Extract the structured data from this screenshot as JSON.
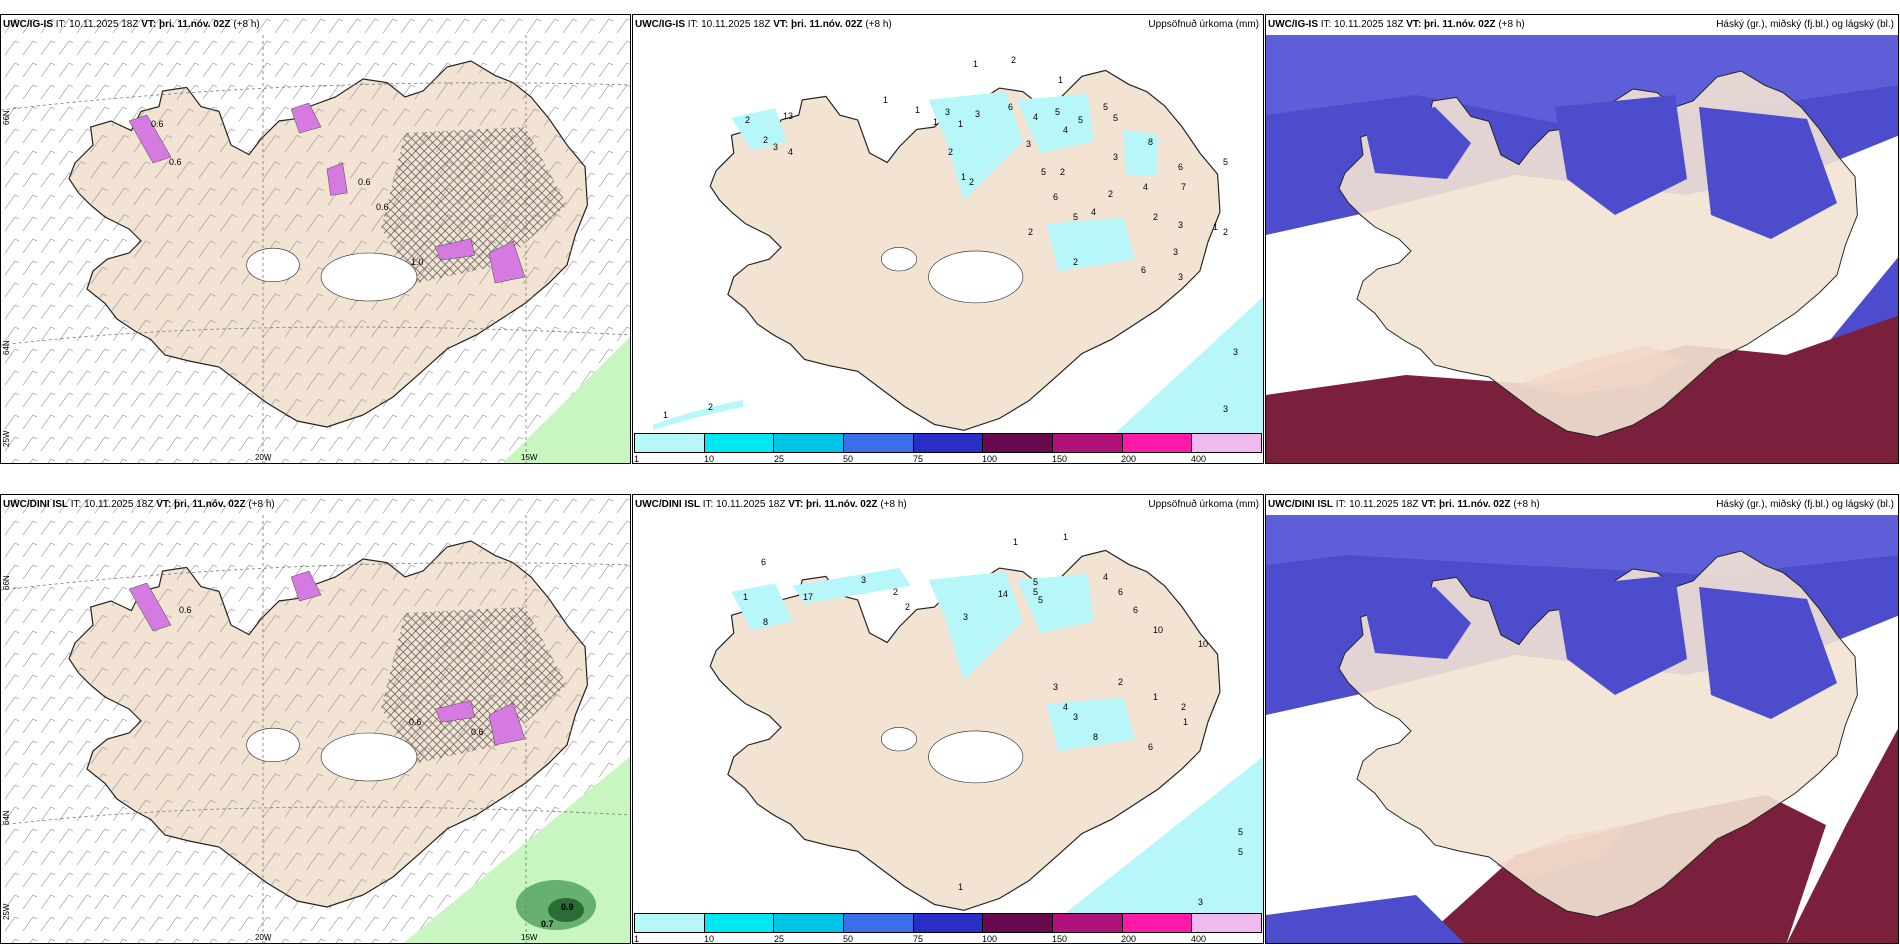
{
  "panels": [
    {
      "model": "UWC/IG-IS",
      "it_label": "IT:",
      "it": "10.11.2025 18Z",
      "vt_label": "VT:",
      "vt": "þri. 11.nóv. 02Z",
      "lead": "(+8 h)",
      "right": ""
    },
    {
      "model": "UWC/IG-IS",
      "it_label": "IT:",
      "it": "10.11.2025 18Z",
      "vt_label": "VT:",
      "vt": "þri. 11.nóv. 02Z",
      "lead": "(+8 h)",
      "right": "Uppsöfnuð úrkoma (mm)"
    },
    {
      "model": "UWC/IG-IS",
      "it_label": "IT:",
      "it": "10.11.2025 18Z",
      "vt_label": "VT:",
      "vt": "þri. 11.nóv. 02Z",
      "lead": "(+8 h)",
      "right": "Háský (gr.), miðský (fj.bl.) og lágský (bl.)"
    },
    {
      "model": "UWC/DINI ISL",
      "it_label": "IT:",
      "it": "10.11.2025 18Z",
      "vt_label": "VT:",
      "vt": "þri. 11.nóv. 02Z",
      "lead": "(+8 h)",
      "right": ""
    },
    {
      "model": "UWC/DINI ISL",
      "it_label": "IT:",
      "it": "10.11.2025 18Z",
      "vt_label": "VT:",
      "vt": "þri. 11.nóv. 02Z",
      "lead": "(+8 h)",
      "right": "Uppsöfnuð úrkoma (mm)"
    },
    {
      "model": "UWC/DINI ISL",
      "it_label": "IT:",
      "it": "10.11.2025 18Z",
      "vt_label": "VT:",
      "vt": "þri. 11.nóv. 02Z",
      "lead": "(+8 h)",
      "right": "Háský (gr.), miðský (fj.bl.) og lágský (bl.)"
    }
  ],
  "axes": {
    "lat_66": "66N",
    "lat_64": "64N",
    "lon_25": "25W",
    "lon_20": "20W",
    "lon_15": "15W"
  },
  "precip_legend": {
    "colors": [
      "#b7f7fa",
      "#00e8ef",
      "#00c5e6",
      "#3b6ee8",
      "#2b2ec4",
      "#6a0a4e",
      "#b0127a",
      "#ff1aa8",
      "#f2b8f0"
    ],
    "ticks": [
      "1",
      "10",
      "25",
      "50",
      "75",
      "100",
      "150",
      "200",
      "400"
    ]
  },
  "precip_top_labels": [
    "1",
    "2",
    "1",
    "2",
    "2",
    "3",
    "4",
    "13",
    "1",
    "1",
    "1",
    "3",
    "1",
    "3",
    "2",
    "1",
    "2",
    "6",
    "4",
    "3",
    "5",
    "6",
    "5",
    "4",
    "5",
    "5",
    "5",
    "8",
    "6",
    "7",
    "2",
    "2",
    "4",
    "3",
    "5",
    "4",
    "2",
    "3",
    "2",
    "1",
    "2",
    "3",
    "6",
    "5",
    "2",
    "3",
    "3",
    "3",
    "1",
    "2"
  ],
  "precip_bottom_labels": [
    "1",
    "1",
    "3",
    "6",
    "17",
    "8",
    "2",
    "2",
    "14",
    "5",
    "4",
    "6",
    "10",
    "10",
    "5",
    "3",
    "6",
    "5",
    "3",
    "8",
    "4",
    "6",
    "2",
    "1",
    "2",
    "1",
    "3",
    "5",
    "5",
    "3",
    "1",
    "1"
  ],
  "wind_top_labels": [
    "0.6",
    "0.6",
    "0.6",
    "0.6",
    "1.0"
  ],
  "wind_bottom_labels": [
    "0.9",
    "0.7",
    "0.6",
    "0.6",
    "0.6"
  ],
  "colors": {
    "land": "#f3e3d3",
    "sea": "#ffffff",
    "wind_green": "#c8f5c0",
    "wind_green_dark": "#4da05a",
    "snow_purple": "#d47ae0",
    "cloud_high": "#4c4ccc",
    "cloud_mid": "#9090ef",
    "cloud_low": "#7a1f3c",
    "cloud_low_red": "#e7584d"
  }
}
